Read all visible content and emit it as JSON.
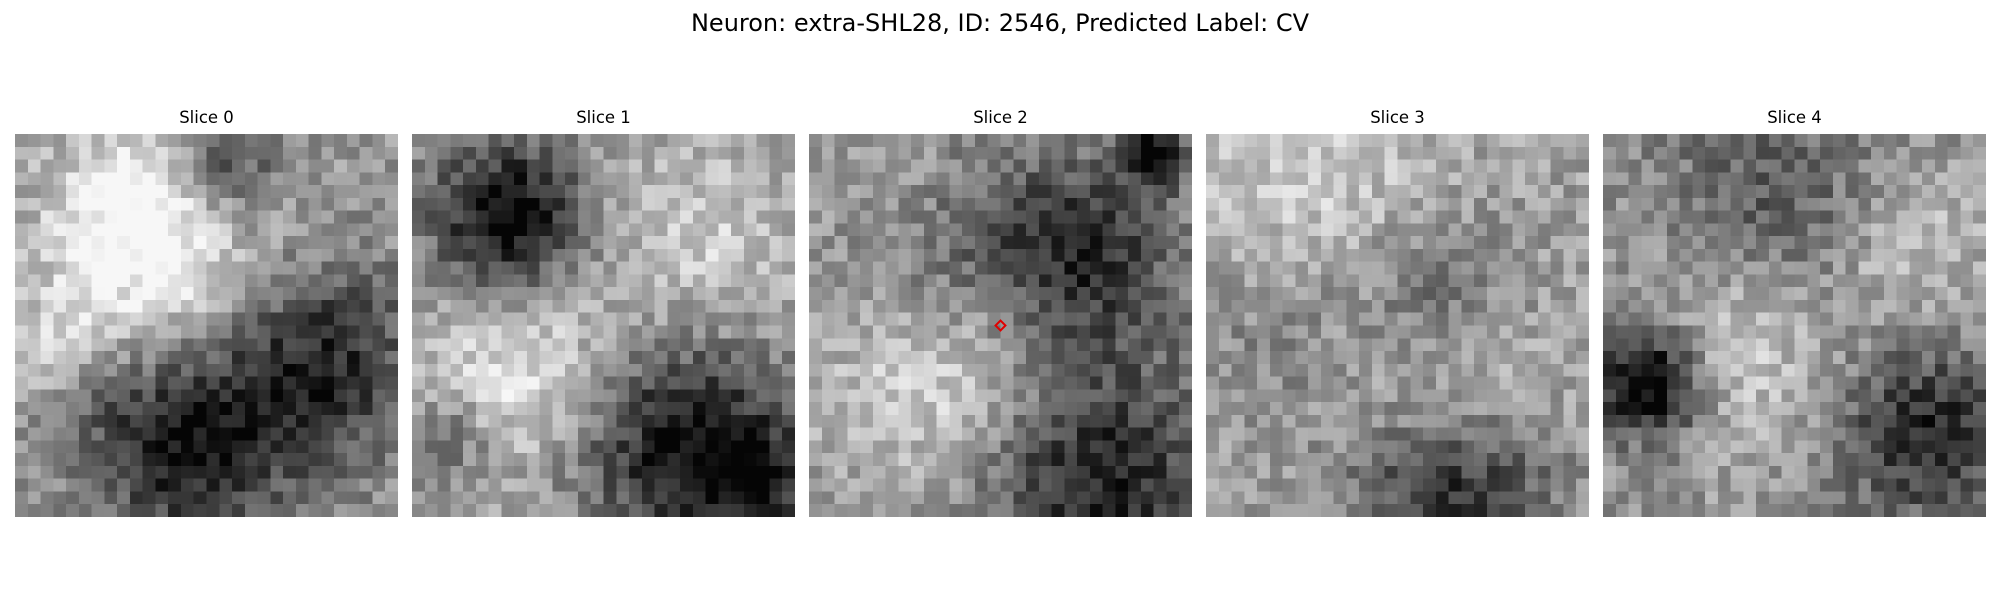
{
  "figure": {
    "title": "Neuron: extra-SHL28, ID: 2546, Predicted Label: CV"
  },
  "colormap": "gray",
  "marker_color": "#e00000",
  "panels": [
    {
      "title": "Slice 0",
      "dark_blobs": [
        [
          0.55,
          0.08,
          0.1,
          -0.35
        ],
        [
          0.45,
          0.8,
          0.18,
          -0.55
        ],
        [
          0.8,
          0.6,
          0.18,
          -0.45
        ],
        [
          0.15,
          0.65,
          0.1,
          -0.25
        ]
      ],
      "light_blobs": [
        [
          0.35,
          0.33,
          0.2,
          0.4
        ],
        [
          0.1,
          0.6,
          0.1,
          0.3
        ],
        [
          0.3,
          0.15,
          0.12,
          0.2
        ]
      ],
      "seed": 11,
      "base": 0.6
    },
    {
      "title": "Slice 1",
      "dark_blobs": [
        [
          0.25,
          0.22,
          0.14,
          -0.65
        ],
        [
          0.7,
          0.8,
          0.2,
          -0.55
        ],
        [
          0.1,
          0.8,
          0.08,
          -0.25
        ],
        [
          0.9,
          0.9,
          0.1,
          -0.4
        ]
      ],
      "light_blobs": [
        [
          0.3,
          0.62,
          0.18,
          0.3
        ],
        [
          0.75,
          0.3,
          0.18,
          0.2
        ]
      ],
      "seed": 23,
      "base": 0.62
    },
    {
      "title": "Slice 2",
      "dark_blobs": [
        [
          0.7,
          0.32,
          0.18,
          -0.45
        ],
        [
          0.3,
          0.33,
          0.2,
          -0.3
        ],
        [
          0.75,
          0.9,
          0.22,
          -0.5
        ],
        [
          0.9,
          0.05,
          0.06,
          -0.6
        ]
      ],
      "light_blobs": [
        [
          0.35,
          0.58,
          0.22,
          0.35
        ],
        [
          0.2,
          0.15,
          0.14,
          0.15
        ]
      ],
      "seed": 37,
      "base": 0.6,
      "marker": true
    },
    {
      "title": "Slice 3",
      "dark_blobs": [
        [
          0.65,
          0.92,
          0.18,
          -0.55
        ],
        [
          0.6,
          0.4,
          0.14,
          -0.25
        ],
        [
          0.2,
          0.45,
          0.2,
          -0.2
        ]
      ],
      "light_blobs": [
        [
          0.25,
          0.22,
          0.25,
          0.25
        ],
        [
          0.65,
          0.72,
          0.18,
          0.25
        ]
      ],
      "seed": 51,
      "base": 0.62
    },
    {
      "title": "Slice 4",
      "dark_blobs": [
        [
          0.12,
          0.65,
          0.1,
          -0.7
        ],
        [
          0.85,
          0.78,
          0.16,
          -0.45
        ],
        [
          0.45,
          0.18,
          0.2,
          -0.25
        ]
      ],
      "light_blobs": [
        [
          0.35,
          0.55,
          0.18,
          0.25
        ],
        [
          0.8,
          0.3,
          0.15,
          0.2
        ]
      ],
      "seed": 67,
      "base": 0.58
    }
  ]
}
